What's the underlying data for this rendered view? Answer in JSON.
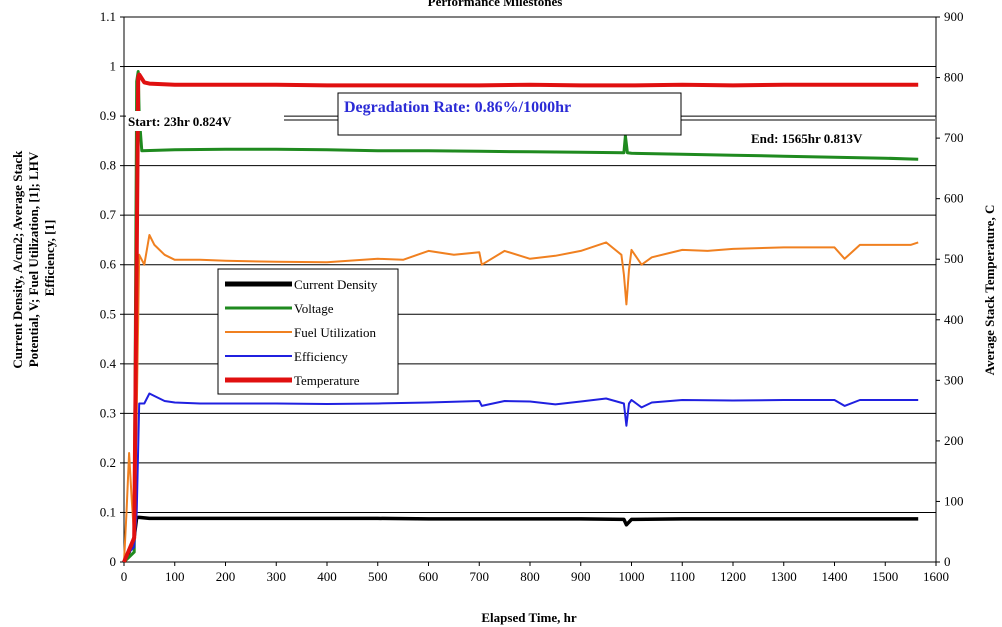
{
  "chart_data": {
    "type": "line",
    "title": "Performance Milestones",
    "xlabel": "Elapsed Time, hr",
    "ylabel_left": "Current Density, A/cm2; Average Stack Potential, V; Fuel Utilization, [1]; LHV Efficiency, [1]",
    "ylabel_right": "Average Stack Temperature, C",
    "xlim": [
      0,
      1600
    ],
    "ylim_left": [
      0,
      1.1
    ],
    "ylim_right": [
      0,
      900
    ],
    "x_ticks": [
      "0",
      "100",
      "200",
      "300",
      "400",
      "500",
      "600",
      "700",
      "800",
      "900",
      "1000",
      "1100",
      "1200",
      "1300",
      "1400",
      "1500",
      "1600"
    ],
    "y_left_ticks": [
      "0",
      "0.1",
      "0.2",
      "0.3",
      "0.4",
      "0.5",
      "0.6",
      "0.7",
      "0.8",
      "0.9",
      "1",
      "1.1"
    ],
    "y_right_ticks": [
      "0",
      "100",
      "200",
      "300",
      "400",
      "500",
      "600",
      "700",
      "800",
      "900"
    ],
    "grid": "horizontal",
    "legend_position": "center-left",
    "series": [
      {
        "name": "Current Density",
        "axis": "left",
        "color": "#000000",
        "x": [
          0,
          10,
          20,
          25,
          30,
          50,
          100,
          200,
          300,
          400,
          500,
          600,
          700,
          800,
          900,
          985,
          990,
          1000,
          1100,
          1200,
          1300,
          1400,
          1500,
          1565
        ],
        "y": [
          0.0,
          0.02,
          0.05,
          0.09,
          0.09,
          0.088,
          0.088,
          0.088,
          0.088,
          0.088,
          0.088,
          0.087,
          0.087,
          0.087,
          0.087,
          0.086,
          0.075,
          0.086,
          0.087,
          0.087,
          0.087,
          0.087,
          0.087,
          0.087
        ]
      },
      {
        "name": "Voltage",
        "axis": "left",
        "color": "#1f8a1f",
        "x": [
          0,
          10,
          20,
          25,
          28,
          30,
          35,
          100,
          200,
          300,
          400,
          500,
          600,
          700,
          800,
          900,
          985,
          988,
          992,
          1000,
          1100,
          1200,
          1300,
          1400,
          1500,
          1565
        ],
        "y": [
          0.0,
          0.01,
          0.02,
          0.97,
          0.99,
          0.9,
          0.83,
          0.832,
          0.833,
          0.833,
          0.832,
          0.83,
          0.83,
          0.829,
          0.828,
          0.827,
          0.826,
          0.86,
          0.826,
          0.825,
          0.823,
          0.821,
          0.819,
          0.817,
          0.815,
          0.813
        ]
      },
      {
        "name": "Fuel Utilization",
        "axis": "left",
        "color": "#f08020",
        "x": [
          0,
          5,
          10,
          15,
          20,
          25,
          30,
          40,
          50,
          60,
          80,
          100,
          150,
          200,
          300,
          400,
          500,
          550,
          600,
          650,
          700,
          705,
          750,
          800,
          850,
          900,
          950,
          980,
          985,
          990,
          995,
          1000,
          1020,
          1040,
          1100,
          1150,
          1200,
          1300,
          1400,
          1420,
          1450,
          1500,
          1550,
          1565
        ],
        "y": [
          0.0,
          0.1,
          0.22,
          0.13,
          0.05,
          0.3,
          0.62,
          0.6,
          0.66,
          0.64,
          0.62,
          0.61,
          0.61,
          0.608,
          0.606,
          0.605,
          0.612,
          0.61,
          0.628,
          0.62,
          0.625,
          0.6,
          0.628,
          0.612,
          0.618,
          0.628,
          0.645,
          0.62,
          0.58,
          0.52,
          0.59,
          0.63,
          0.6,
          0.615,
          0.63,
          0.628,
          0.632,
          0.635,
          0.635,
          0.612,
          0.64,
          0.64,
          0.64,
          0.645
        ]
      },
      {
        "name": "Efficiency",
        "axis": "left",
        "color": "#2020e0",
        "x": [
          0,
          10,
          20,
          25,
          30,
          40,
          50,
          60,
          80,
          100,
          150,
          200,
          300,
          400,
          500,
          600,
          700,
          705,
          750,
          800,
          850,
          900,
          950,
          985,
          990,
          995,
          1000,
          1020,
          1040,
          1100,
          1200,
          1300,
          1400,
          1420,
          1450,
          1500,
          1565
        ],
        "y": [
          0.0,
          0.02,
          0.03,
          0.1,
          0.32,
          0.32,
          0.34,
          0.335,
          0.325,
          0.322,
          0.32,
          0.32,
          0.32,
          0.319,
          0.32,
          0.322,
          0.325,
          0.315,
          0.325,
          0.324,
          0.318,
          0.324,
          0.33,
          0.32,
          0.275,
          0.32,
          0.327,
          0.312,
          0.322,
          0.327,
          0.326,
          0.327,
          0.327,
          0.315,
          0.327,
          0.327,
          0.327
        ]
      },
      {
        "name": "Temperature",
        "axis": "right",
        "color": "#e01010",
        "x": [
          0,
          10,
          20,
          25,
          28,
          30,
          40,
          50,
          100,
          200,
          300,
          400,
          500,
          600,
          700,
          800,
          900,
          1000,
          1100,
          1200,
          1300,
          1400,
          1500,
          1565
        ],
        "y": [
          0,
          20,
          40,
          500,
          800,
          805,
          792,
          790,
          788,
          788,
          788,
          787,
          787,
          787,
          787,
          788,
          787,
          787,
          788,
          787,
          788,
          788,
          788,
          788
        ]
      }
    ],
    "annotations": {
      "start": "Start: 23hr 0.824V",
      "end": "End: 1565hr 0.813V",
      "degradation": "Degradation Rate: 0.86%/1000hr"
    }
  }
}
